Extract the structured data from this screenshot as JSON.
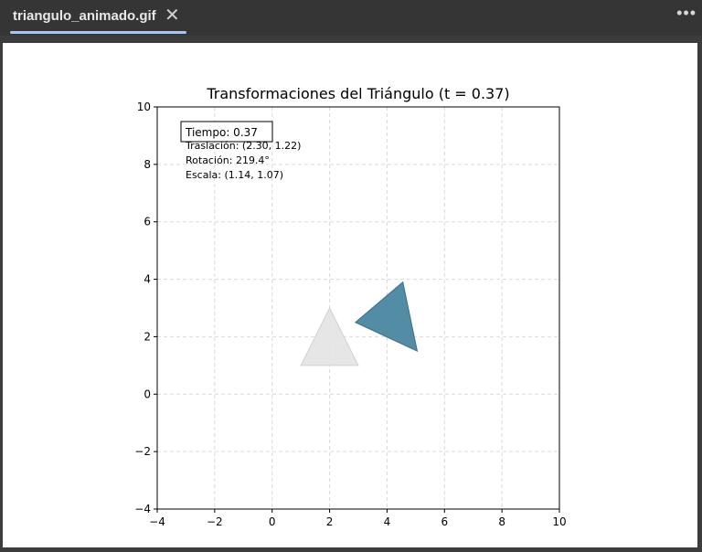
{
  "tab": {
    "title": "triangulo_animado.gif",
    "close_glyph": "✕",
    "more_glyph": "•••"
  },
  "colors": {
    "tab_underline": "#a8c4f0",
    "triangle_fill": "#4a86a0",
    "original_triangle_fill": "#e3e3e3"
  },
  "chart_data": {
    "type": "scatter",
    "title": "Transformaciones del Triángulo (t = 0.37)",
    "xlabel": "",
    "ylabel": "",
    "xlim": [
      -4,
      10
    ],
    "ylim": [
      -4,
      10
    ],
    "grid": true,
    "x_ticks": [
      -4,
      -2,
      0,
      2,
      4,
      6,
      8,
      10
    ],
    "y_ticks": [
      -4,
      -2,
      0,
      2,
      4,
      6,
      8,
      10
    ],
    "x_tick_labels": [
      "−4",
      "−2",
      "0",
      "2",
      "4",
      "6",
      "8",
      "10"
    ],
    "y_tick_labels": [
      "−4",
      "−2",
      "0",
      "2",
      "4",
      "6",
      "8",
      "10"
    ],
    "shapes": [
      {
        "role": "original",
        "vertices": [
          [
            1,
            1
          ],
          [
            3,
            1
          ],
          [
            2,
            3
          ]
        ]
      },
      {
        "role": "transformed",
        "vertices": [
          [
            2.9,
            2.5
          ],
          [
            4.55,
            3.9
          ],
          [
            5.05,
            1.5
          ]
        ]
      }
    ],
    "info_box": "Tiempo: 0.37",
    "annotations": [
      "Traslación: (2.30, 1.22)",
      "Rotación: 219.4°",
      "Escala: (1.14, 1.07)"
    ]
  }
}
